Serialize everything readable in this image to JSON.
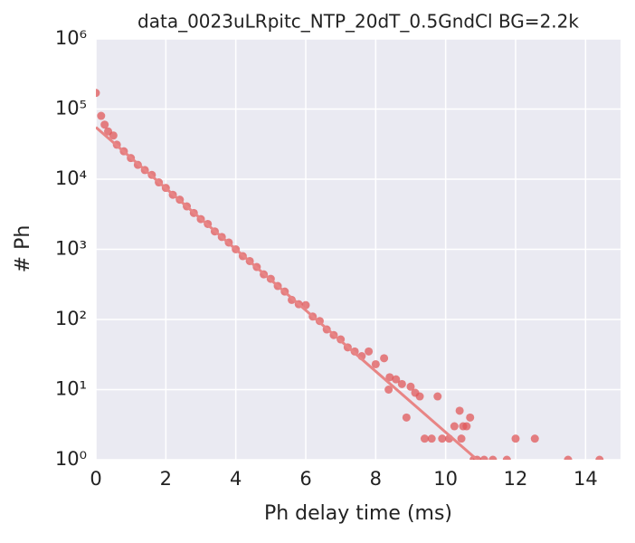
{
  "chart_data": {
    "type": "scatter",
    "title": "data_0023uLRpitc_NTP_20dT_0.5GndCl BG=2.2k",
    "xlabel": "Ph delay time (ms)",
    "ylabel": "# Ph",
    "xlim": [
      0,
      15
    ],
    "xticks": [
      0,
      2,
      4,
      6,
      8,
      10,
      12,
      14
    ],
    "ylim": [
      1,
      1000000
    ],
    "log_y": true,
    "grid": true,
    "yticks": [
      {
        "value": 1,
        "label": "10⁰"
      },
      {
        "value": 10,
        "label": "10¹"
      },
      {
        "value": 100,
        "label": "10²"
      },
      {
        "value": 1000,
        "label": "10³"
      },
      {
        "value": 10000,
        "label": "10⁴"
      },
      {
        "value": 100000,
        "label": "10⁵"
      },
      {
        "value": 1000000,
        "label": "10⁶"
      }
    ],
    "series": [
      {
        "type": "scatter",
        "color": "#e0585a",
        "x": [
          0,
          0.15,
          0.25,
          0.35,
          0.5,
          0.6,
          0.8,
          1.0,
          1.2,
          1.4,
          1.6,
          1.8,
          2.0,
          2.2,
          2.4,
          2.6,
          2.8,
          3.0,
          3.2,
          3.4,
          3.6,
          3.8,
          4.0,
          4.2,
          4.4,
          4.6,
          4.8,
          5.0,
          5.2,
          5.4,
          5.6,
          5.8,
          6.0,
          6.2,
          6.4,
          6.6,
          6.8,
          7.0,
          7.2,
          7.4,
          7.6,
          7.8,
          8.0,
          8.24,
          8.37,
          8.4,
          8.58,
          8.75,
          8.88,
          9.0,
          9.13,
          9.26,
          9.77,
          9.4,
          9.6,
          9.9,
          10.1,
          10.25,
          10.4,
          10.5,
          10.6,
          10.7,
          10.8,
          10.9,
          10.45,
          11.1,
          11.35,
          11.75,
          12.55,
          13.5,
          14.4,
          12.0
        ],
        "values": [
          170000,
          80000,
          60000,
          48000,
          42000,
          31000,
          25000,
          20000,
          16000,
          13500,
          11500,
          9000,
          7500,
          6000,
          5100,
          4100,
          3300,
          2700,
          2300,
          1800,
          1500,
          1250,
          1000,
          800,
          680,
          560,
          440,
          380,
          300,
          250,
          190,
          165,
          160,
          110,
          95,
          72,
          60,
          52,
          40,
          35,
          30,
          35,
          23,
          28,
          10,
          15,
          14,
          12,
          4,
          11,
          9,
          8,
          8,
          2,
          2,
          2,
          2,
          3,
          5,
          3,
          3,
          4,
          1,
          1,
          2,
          1,
          1,
          1,
          2,
          1,
          1,
          2
        ]
      },
      {
        "type": "line",
        "color": "#e88585",
        "x": [
          0,
          10.9
        ],
        "values": [
          55000,
          1
        ]
      }
    ]
  }
}
